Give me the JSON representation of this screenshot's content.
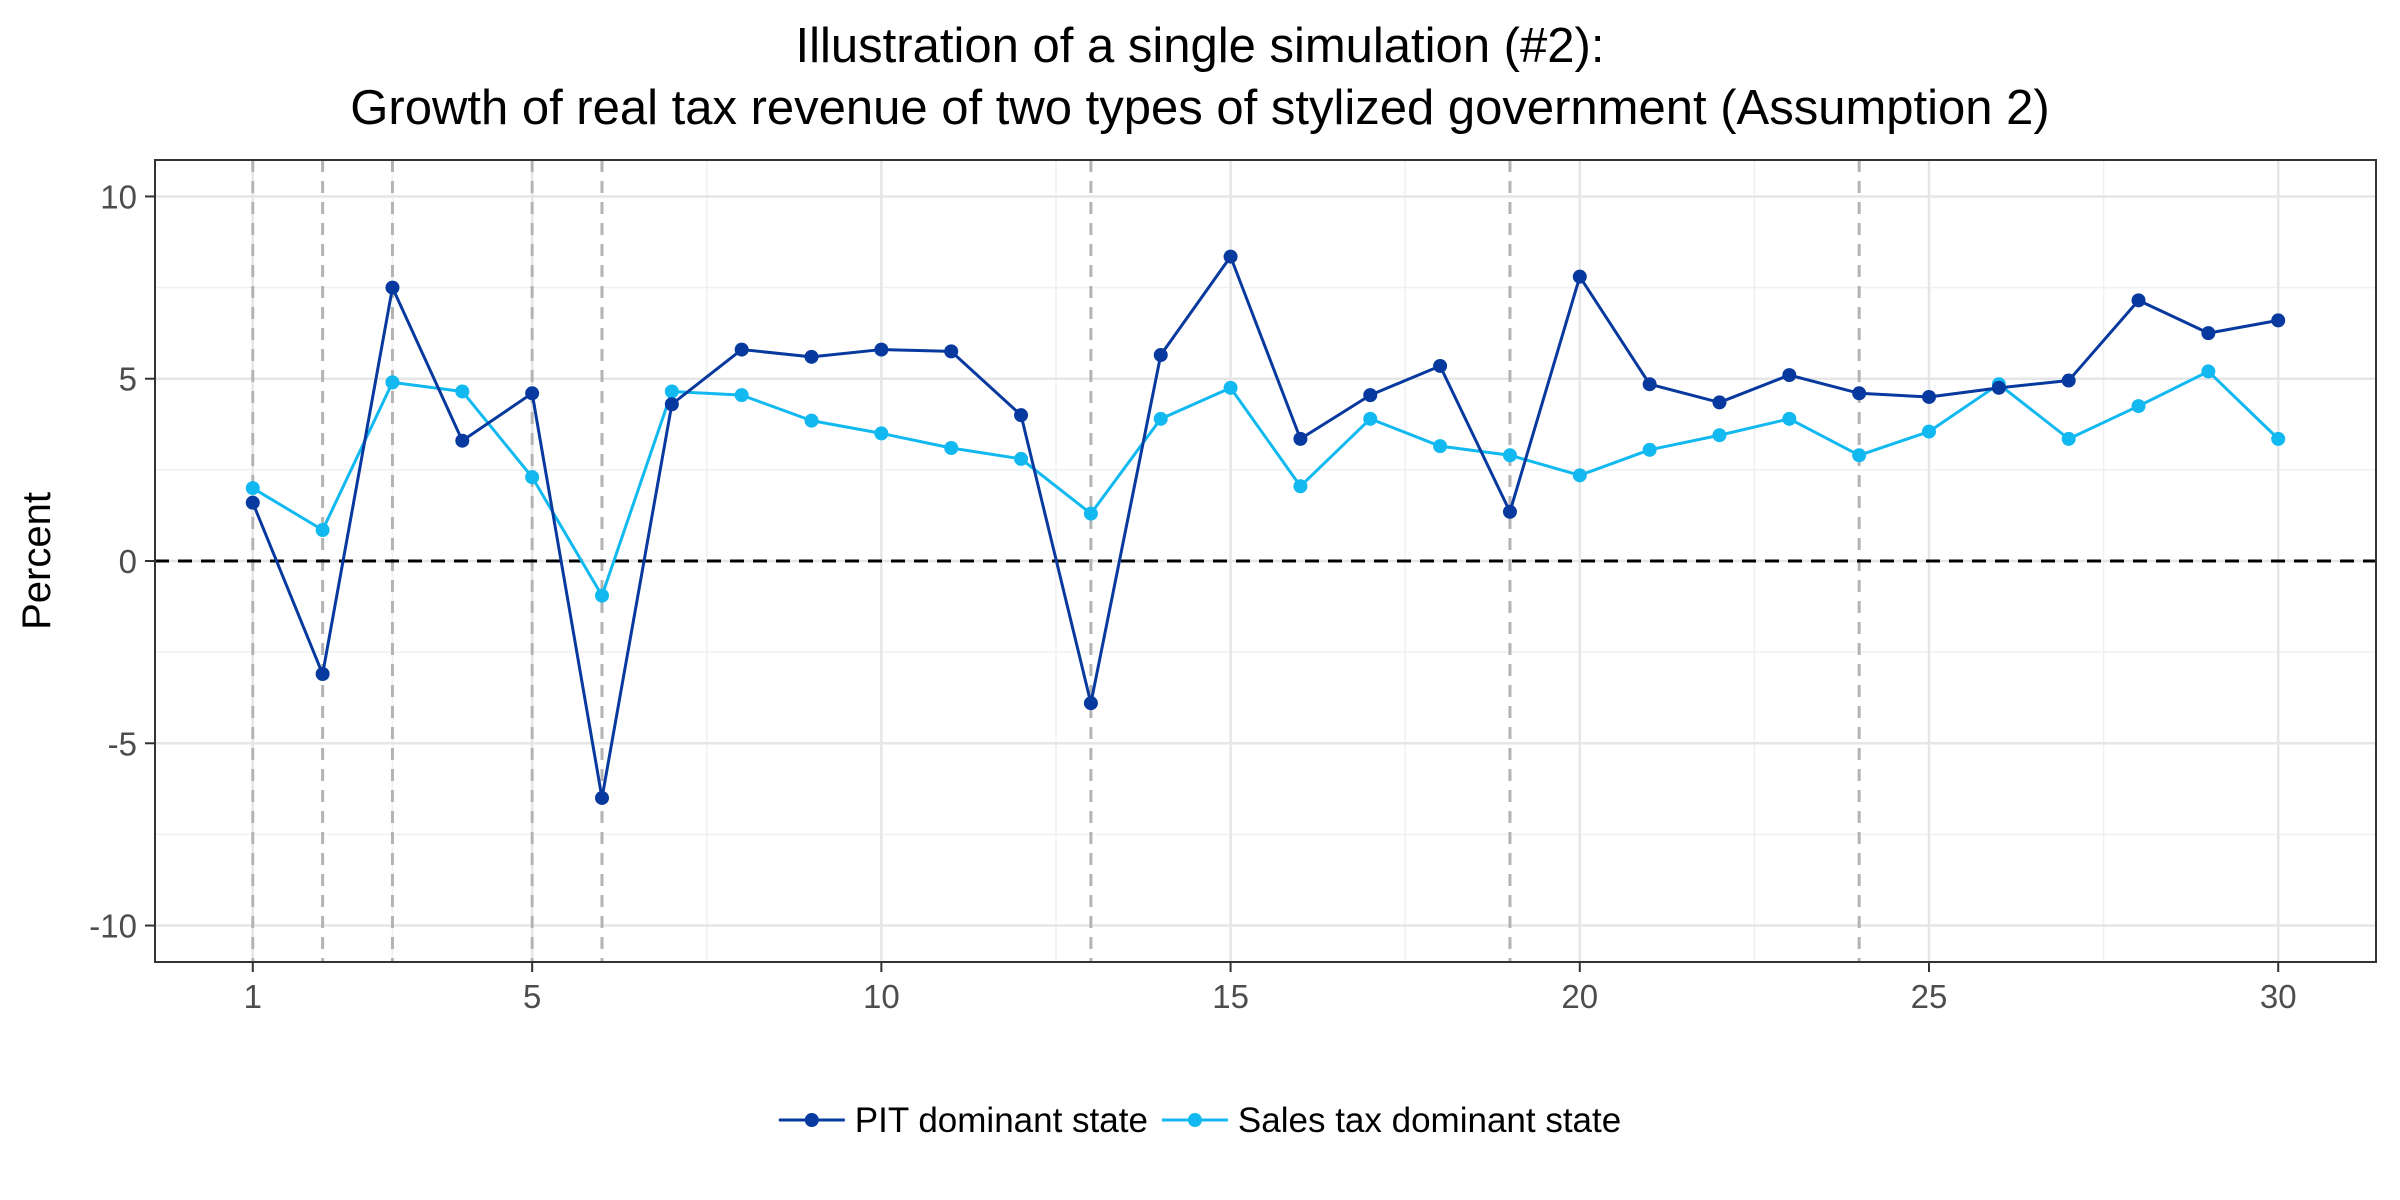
{
  "chart_data": {
    "type": "line",
    "title_lines": [
      "Illustration of a single simulation (#2):",
      "Growth of real tax revenue of two types of stylized government (Assumption 2)"
    ],
    "xlabel": "",
    "ylabel": "Percent",
    "xlim": [
      -0.4,
      31.4
    ],
    "ylim": [
      -11,
      11
    ],
    "x_ticks": [
      1,
      5,
      10,
      15,
      20,
      25,
      30
    ],
    "y_ticks": [
      -10,
      -5,
      0,
      5,
      10
    ],
    "y_tick_labels": [
      "-10",
      "-5",
      "0",
      "5",
      "10"
    ],
    "grid": true,
    "legend_position": "bottom",
    "x": [
      1,
      2,
      3,
      4,
      5,
      6,
      7,
      8,
      9,
      10,
      11,
      12,
      13,
      14,
      15,
      16,
      17,
      18,
      19,
      20,
      21,
      22,
      23,
      24,
      25,
      26,
      27,
      28,
      29,
      30
    ],
    "series": [
      {
        "name": "PIT dominant state",
        "color": "#08399e",
        "values": [
          1.6,
          -3.1,
          7.5,
          3.3,
          4.6,
          -6.5,
          4.3,
          5.8,
          5.6,
          5.8,
          5.75,
          4.0,
          -3.9,
          5.65,
          8.35,
          3.35,
          4.55,
          5.35,
          1.35,
          7.8,
          4.85,
          4.35,
          5.1,
          4.6,
          4.5,
          4.75,
          4.95,
          7.15,
          6.25,
          6.6
        ]
      },
      {
        "name": "Sales tax dominant state",
        "color": "#11b9f0",
        "values": [
          2.0,
          0.85,
          4.9,
          4.65,
          2.3,
          -0.95,
          4.65,
          4.55,
          3.85,
          3.5,
          3.1,
          2.8,
          1.3,
          3.9,
          4.75,
          2.05,
          3.9,
          3.15,
          2.9,
          2.35,
          3.05,
          3.45,
          3.9,
          2.9,
          3.55,
          4.85,
          3.35,
          4.25,
          5.2,
          3.35
        ]
      }
    ],
    "reference_lines": {
      "horizontal_dashed_at": 0,
      "vertical_dashed_at": [
        1,
        2,
        3,
        5,
        6,
        13,
        19,
        24
      ]
    }
  }
}
